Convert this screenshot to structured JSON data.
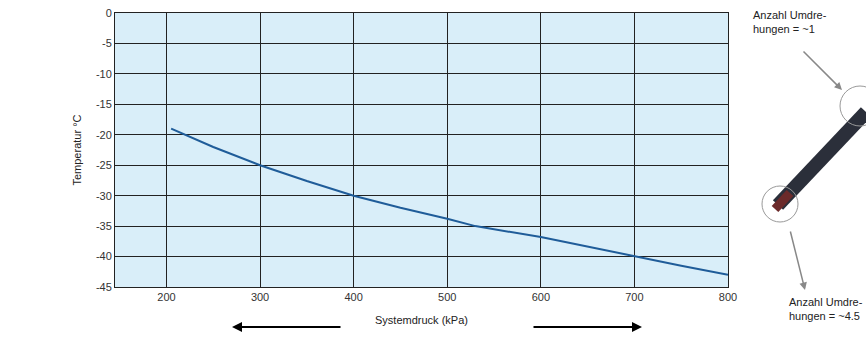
{
  "chart_data": {
    "type": "line",
    "x_label": "Systemdruck (kPa)",
    "y_label": "Temperatur °C",
    "x": [
      205,
      250,
      300,
      350,
      400,
      450,
      500,
      530,
      600,
      650,
      700,
      750,
      800
    ],
    "values": [
      -19,
      -22,
      -25,
      -27.6,
      -30,
      -32,
      -33.8,
      -35,
      -36.8,
      -38.4,
      -40,
      -41.5,
      -43
    ],
    "color": "#1f5c99",
    "xlim": [
      145,
      800
    ],
    "xticks": [
      200,
      300,
      400,
      500,
      600,
      700,
      800
    ],
    "ylim": [
      -45,
      0
    ],
    "yticks": [
      -45,
      -40,
      -35,
      -30,
      -25,
      -20,
      -15,
      -10,
      -5,
      0
    ],
    "grid": true,
    "annotations": [
      "Anzahl Umdre-\nhungen = ~1",
      "Anzahl Umdre-\nhungen = ~4.5"
    ]
  }
}
